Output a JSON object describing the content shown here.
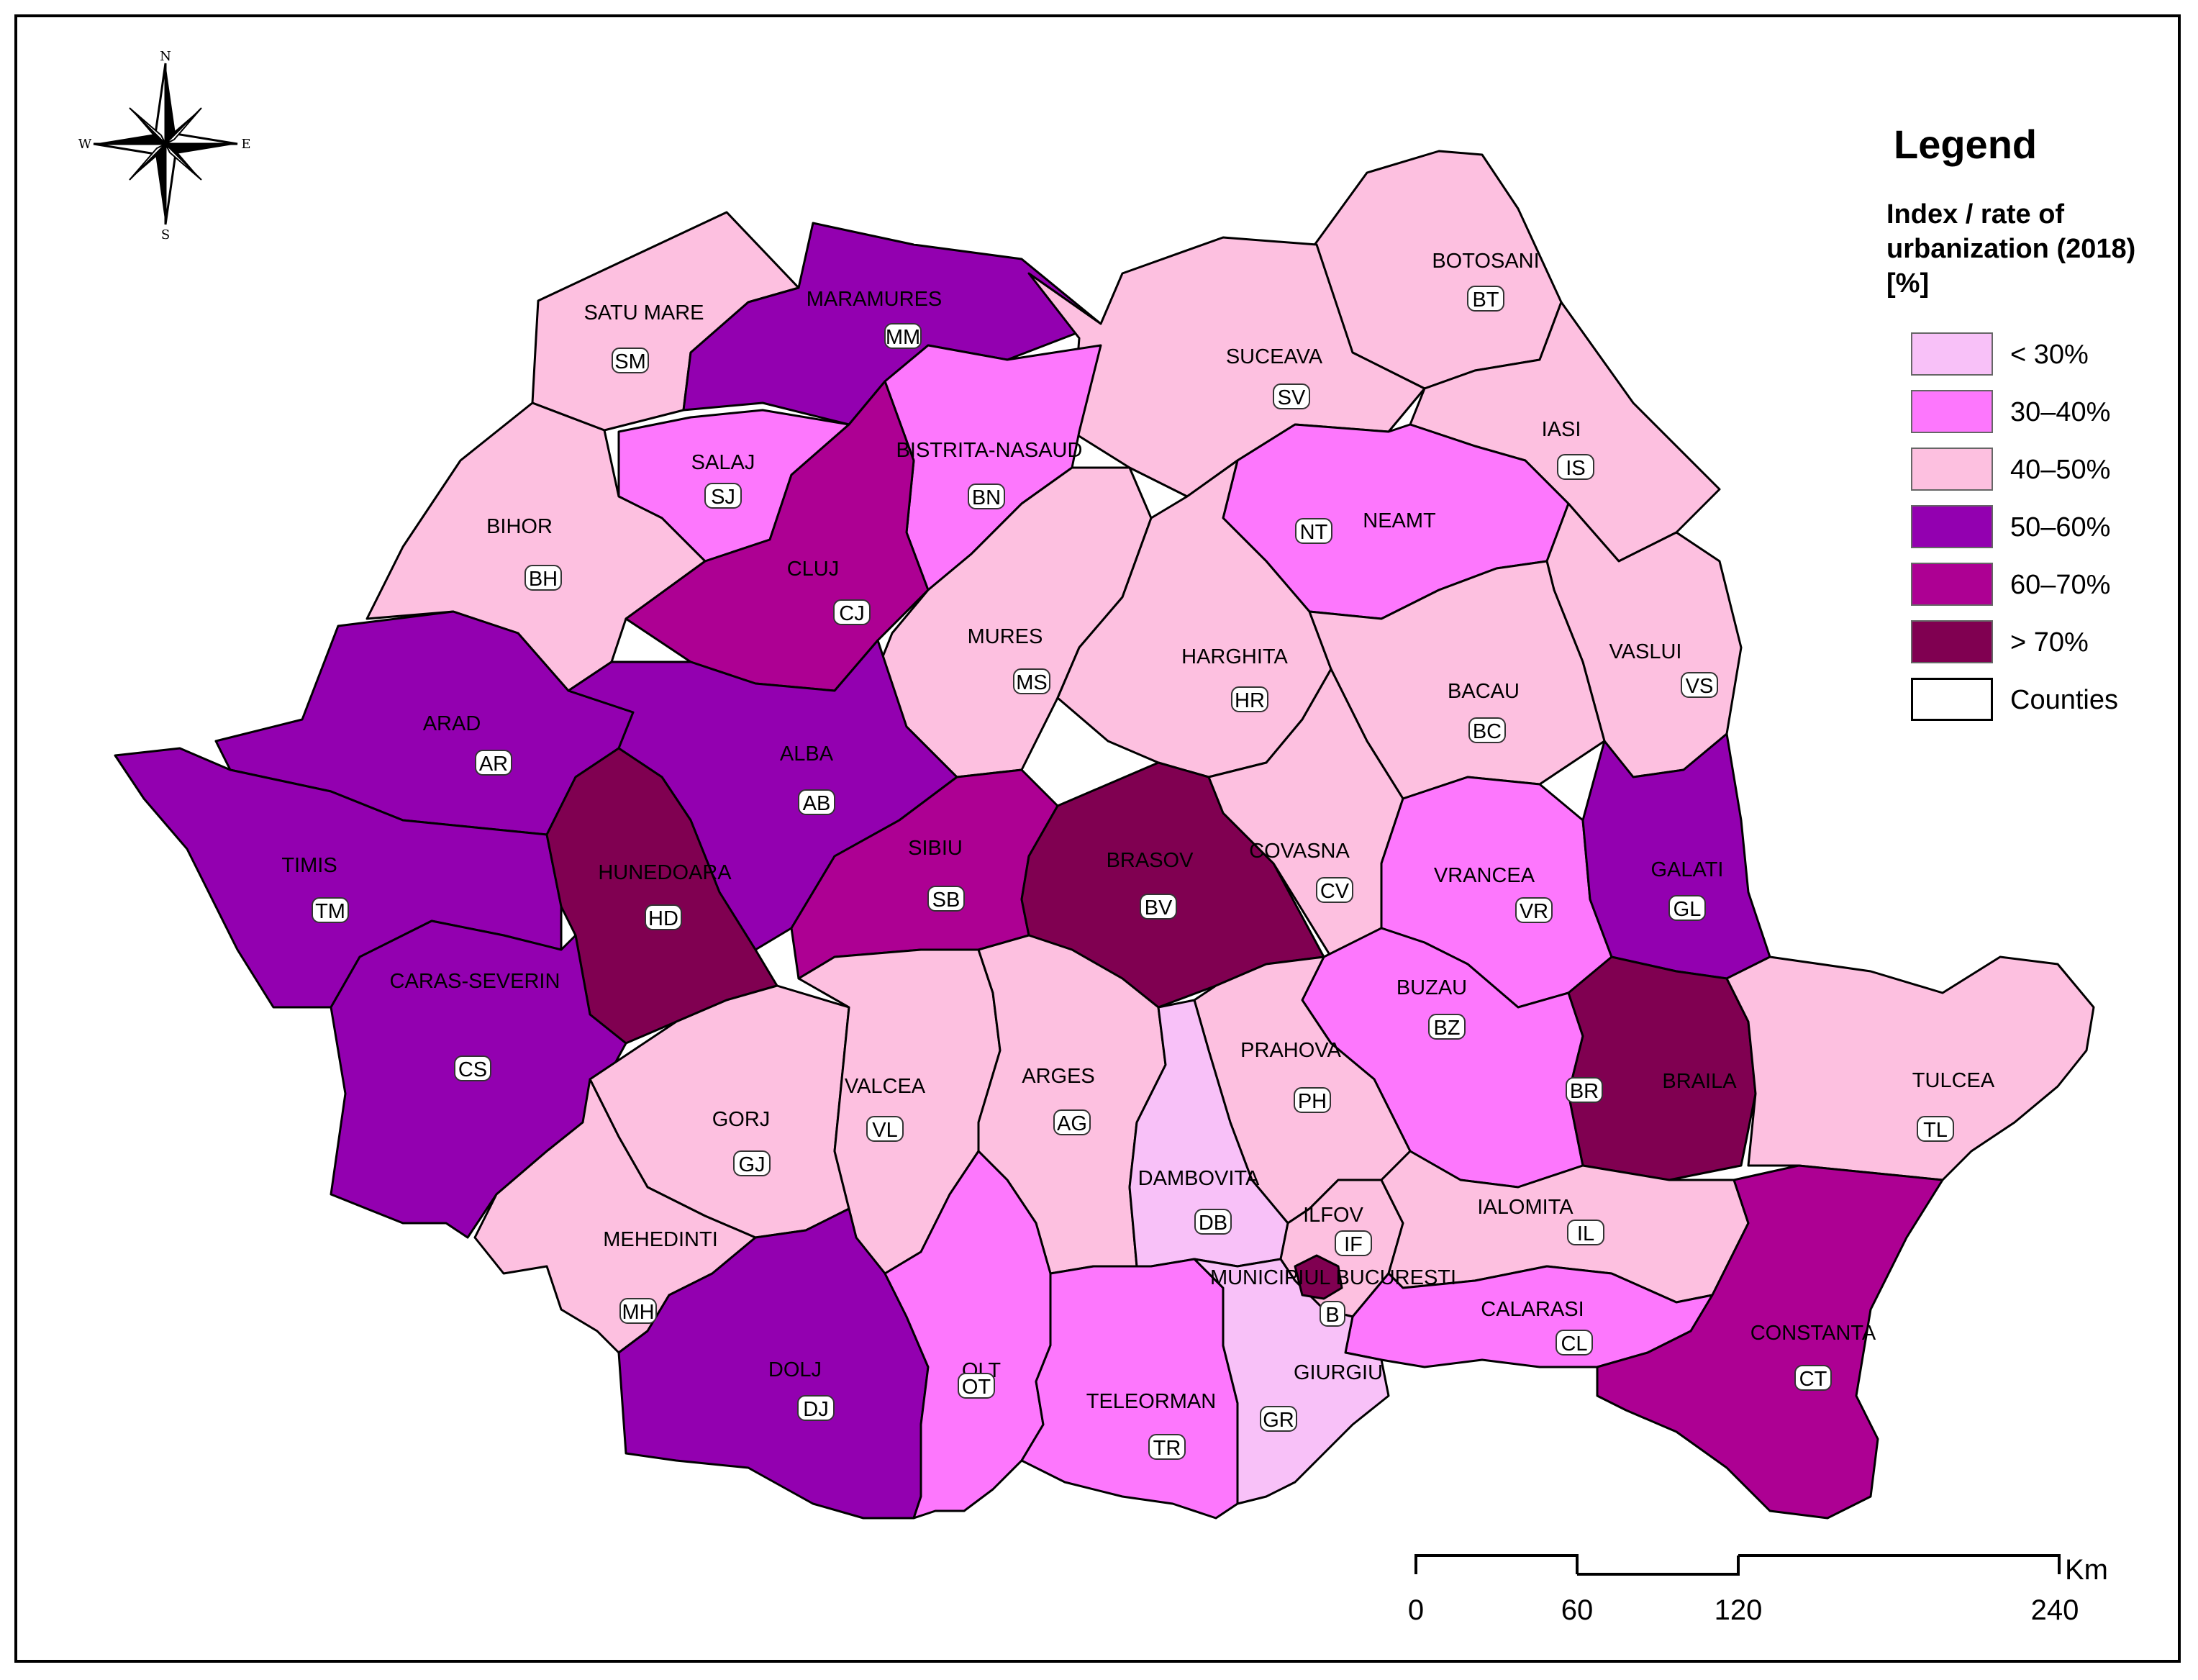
{
  "legend": {
    "title": "Legend",
    "subtitle_lines": [
      "Index / rate of",
      "urbanization (2018)",
      "[%]"
    ],
    "classes": [
      {
        "label": "< 30%",
        "color": "#f8c1f8"
      },
      {
        "label": "30–40%",
        "color": "#fd77fd"
      },
      {
        "label": "40–50%",
        "color": "#fdc0e0"
      },
      {
        "label": "50–60%",
        "color": "#9300b0"
      },
      {
        "label": "60–70%",
        "color": "#ad0093"
      },
      {
        "label": "> 70%",
        "color": "#800051"
      }
    ],
    "boundary": {
      "label": "Counties",
      "color": "#ffffff"
    }
  },
  "compass": {
    "n": "N",
    "s": "S",
    "e": "E",
    "w": "W"
  },
  "scale_bar": {
    "labels": [
      "0",
      "60",
      "120",
      "240"
    ],
    "unit": "Km"
  },
  "counties": [
    {
      "name": "SATU MARE",
      "code": "SM",
      "class": "40–50%"
    },
    {
      "name": "MARAMURES",
      "code": "MM",
      "class": "50–60%"
    },
    {
      "name": "BOTOSANI",
      "code": "BT",
      "class": "40–50%"
    },
    {
      "name": "SUCEAVA",
      "code": "SV",
      "class": "40–50%"
    },
    {
      "name": "SALAJ",
      "code": "SJ",
      "class": "30–40%"
    },
    {
      "name": "BISTRITA-NASAUD",
      "code": "BN",
      "class": "30–40%"
    },
    {
      "name": "IASI",
      "code": "IS",
      "class": "40–50%"
    },
    {
      "name": "BIHOR",
      "code": "BH",
      "class": "40–50%"
    },
    {
      "name": "CLUJ",
      "code": "CJ",
      "class": "60–70%"
    },
    {
      "name": "NEAMT",
      "code": "NT",
      "class": "30–40%"
    },
    {
      "name": "MURES",
      "code": "MS",
      "class": "40–50%"
    },
    {
      "name": "HARGHITA",
      "code": "HR",
      "class": "40–50%"
    },
    {
      "name": "VASLUI",
      "code": "VS",
      "class": "40–50%"
    },
    {
      "name": "BACAU",
      "code": "BC",
      "class": "40–50%"
    },
    {
      "name": "ARAD",
      "code": "AR",
      "class": "50–60%"
    },
    {
      "name": "ALBA",
      "code": "AB",
      "class": "50–60%"
    },
    {
      "name": "TIMIS",
      "code": "TM",
      "class": "50–60%"
    },
    {
      "name": "HUNEDOARA",
      "code": "HD",
      "class": "> 70%"
    },
    {
      "name": "SIBIU",
      "code": "SB",
      "class": "60–70%"
    },
    {
      "name": "BRASOV",
      "code": "BV",
      "class": "> 70%"
    },
    {
      "name": "COVASNA",
      "code": "CV",
      "class": "40–50%"
    },
    {
      "name": "VRANCEA",
      "code": "VR",
      "class": "30–40%"
    },
    {
      "name": "GALATI",
      "code": "GL",
      "class": "50–60%"
    },
    {
      "name": "CARAS-SEVERIN",
      "code": "CS",
      "class": "50–60%"
    },
    {
      "name": "BUZAU",
      "code": "BZ",
      "class": "30–40%"
    },
    {
      "name": "PRAHOVA",
      "code": "PH",
      "class": "40–50%"
    },
    {
      "name": "BRAILA",
      "code": "BR",
      "class": "> 70%"
    },
    {
      "name": "TULCEA",
      "code": "TL",
      "class": "40–50%"
    },
    {
      "name": "GORJ",
      "code": "GJ",
      "class": "40–50%"
    },
    {
      "name": "VALCEA",
      "code": "VL",
      "class": "40–50%"
    },
    {
      "name": "ARGES",
      "code": "AG",
      "class": "40–50%"
    },
    {
      "name": "DAMBOVITA",
      "code": "DB",
      "class": "< 30%"
    },
    {
      "name": "ILFOV",
      "code": "IF",
      "class": "40–50%"
    },
    {
      "name": "IALOMITA",
      "code": "IL",
      "class": "40–50%"
    },
    {
      "name": "MEHEDINTI",
      "code": "MH",
      "class": "40–50%"
    },
    {
      "name": "MUNICIPIUL BUCURESTI",
      "code": "B",
      "class": "> 70%"
    },
    {
      "name": "CALARASI",
      "code": "CL",
      "class": "30–40%"
    },
    {
      "name": "CONSTANTA",
      "code": "CT",
      "class": "60–70%"
    },
    {
      "name": "DOLJ",
      "code": "DJ",
      "class": "50–60%"
    },
    {
      "name": "OLT",
      "code": "OT",
      "class": "30–40%"
    },
    {
      "name": "TELEORMAN",
      "code": "TR",
      "class": "30–40%"
    },
    {
      "name": "GIURGIU",
      "code": "GR",
      "class": "< 30%"
    }
  ]
}
